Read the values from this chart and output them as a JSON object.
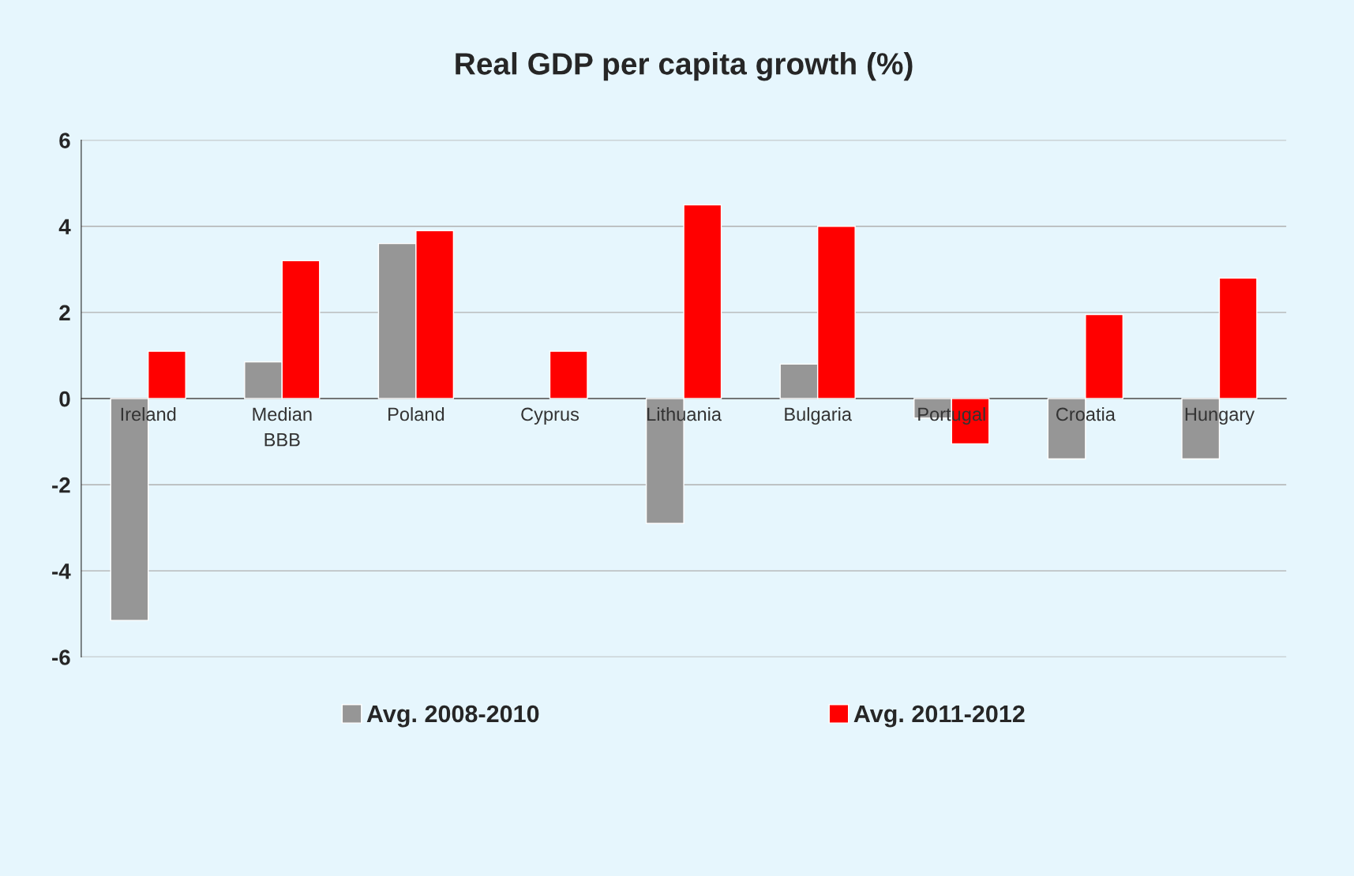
{
  "chart_data": {
    "type": "bar",
    "title": "Real GDP per capita growth (%)",
    "categories": [
      "Ireland",
      "Median\nBBB",
      "Poland",
      "Cyprus",
      "Lithuania",
      "Bulgaria",
      "Portugal",
      "Croatia",
      "Hungary"
    ],
    "series": [
      {
        "name": "Avg. 2008-2010",
        "color": "#969696",
        "values": [
          -5.15,
          0.85,
          3.6,
          null,
          -2.9,
          0.8,
          -0.45,
          -1.4,
          -1.4
        ]
      },
      {
        "name": "Avg. 2011-2012",
        "color": "#ff0000",
        "values": [
          1.1,
          3.2,
          3.9,
          1.1,
          4.5,
          4.0,
          -1.05,
          1.95,
          2.8
        ]
      }
    ],
    "ylim": [
      -6,
      6
    ],
    "yticks": [
      -6,
      -4,
      -2,
      0,
      2,
      4,
      6
    ],
    "grid": "y",
    "legend": "bottom"
  }
}
